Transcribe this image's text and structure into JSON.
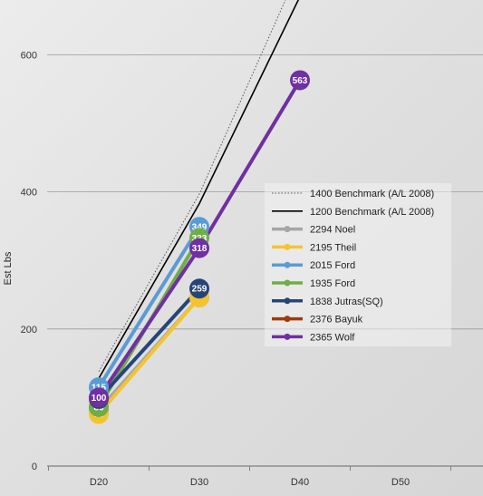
{
  "chart_data": {
    "type": "line",
    "categories": [
      "D20",
      "D30",
      "D40",
      "D50"
    ],
    "ylabel": "Est Lbs",
    "xlabel": "",
    "ylim": [
      0,
      680
    ],
    "yticks": [
      0,
      200,
      400,
      600
    ],
    "grid": true,
    "legend_position": "right",
    "series": [
      {
        "name": "1400 Benchmark (A/L 2008)",
        "values": [
          138,
          397,
          728,
          null
        ],
        "color": "#555555",
        "style": "dotted",
        "markers": false,
        "labels": false
      },
      {
        "name": "1200 Benchmark (A/L 2008)",
        "values": [
          128,
          383,
          685,
          null
        ],
        "color": "#000000",
        "style": "solid",
        "markers": false,
        "labels": false
      },
      {
        "name": "2294 Noel",
        "values": [
          null,
          246,
          null,
          null
        ],
        "color": "#a6a6a6",
        "style": "solid",
        "markers": true,
        "labels": true
      },
      {
        "name": "2195 Theil",
        "values": [
          76,
          null,
          null,
          null
        ],
        "color": "#f4c430",
        "style": "solid",
        "markers": true,
        "labels": true
      },
      {
        "name": "2015 Ford",
        "values": [
          115,
          349,
          null,
          null
        ],
        "color": "#5b9bd5",
        "style": "solid",
        "markers": true,
        "labels": true
      },
      {
        "name": "1935 Ford",
        "values": [
          86,
          333,
          null,
          null
        ],
        "color": "#70ad47",
        "style": "solid",
        "markers": true,
        "labels": true
      },
      {
        "name": "1838 Jutras(SQ)",
        "values": [
          null,
          259,
          null,
          null
        ],
        "color": "#264478",
        "style": "solid",
        "markers": true,
        "labels": true
      },
      {
        "name": "2376 Bayuk",
        "values": [
          null,
          null,
          null,
          null
        ],
        "color": "#9e3b0b",
        "style": "solid",
        "markers": true,
        "labels": false
      },
      {
        "name": "2365 Wolf",
        "values": [
          100,
          318,
          563,
          null
        ],
        "color": "#7030a0",
        "style": "solid",
        "markers": true,
        "labels": true
      }
    ],
    "extra_points": [
      {
        "series": "2294 Noel",
        "x": "D20",
        "value": 82,
        "label": "82"
      },
      {
        "series": "2195 Theil",
        "x": "D30",
        "value": 246,
        "label": ""
      },
      {
        "series": "1838 Jutras(SQ)",
        "x": "D20",
        "value": 98,
        "label": ""
      }
    ]
  }
}
